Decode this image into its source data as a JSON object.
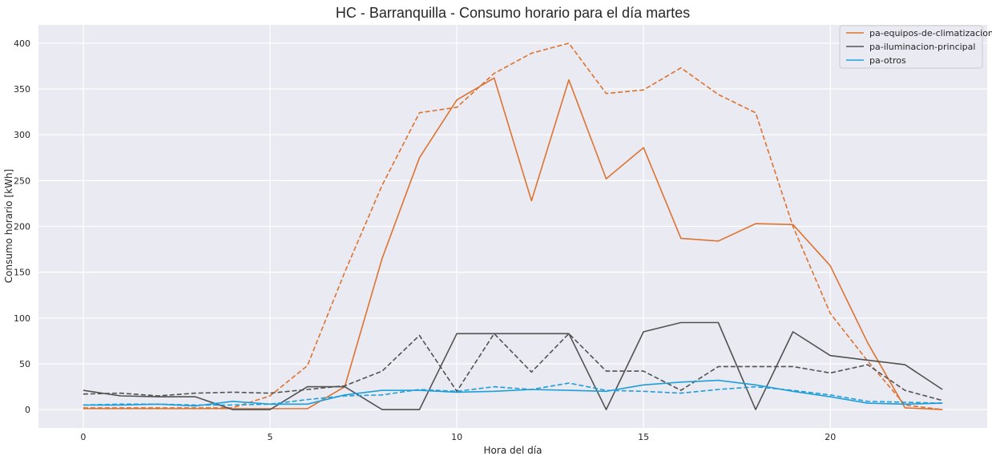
{
  "chart_data": {
    "type": "line",
    "title": "HC - Barranquilla - Consumo horario para el día martes",
    "xlabel": "Hora del día",
    "ylabel": "Consumo horario [kWh]",
    "xlim": [
      -1.2,
      24.2
    ],
    "ylim": [
      -20,
      420
    ],
    "xticks": [
      0,
      5,
      10,
      15,
      20
    ],
    "yticks": [
      0,
      50,
      100,
      150,
      200,
      250,
      300,
      350,
      400
    ],
    "grid": true,
    "legend_position": "top-right",
    "background": "#eaeaf2",
    "x": [
      0,
      1,
      2,
      3,
      4,
      5,
      6,
      7,
      8,
      9,
      10,
      11,
      12,
      13,
      14,
      15,
      16,
      17,
      18,
      19,
      20,
      21,
      22,
      23
    ],
    "series": [
      {
        "name": "pa-equipos-de-climatizacion",
        "style": "solid",
        "color": "#dd7330",
        "legend": true,
        "values": [
          1,
          1,
          1,
          1,
          1,
          1,
          1,
          25,
          165,
          275,
          338,
          362,
          228,
          360,
          252,
          286,
          187,
          184,
          203,
          202,
          157,
          73,
          2,
          0
        ]
      },
      {
        "name": "pa-equipos-de-climatizacion",
        "style": "dashed",
        "color": "#dd7330",
        "legend": false,
        "values": [
          2,
          2,
          2,
          2,
          2,
          15,
          48,
          150,
          245,
          324,
          330,
          367,
          389,
          400,
          345,
          349,
          373,
          344,
          324,
          200,
          105,
          53,
          5,
          0
        ]
      },
      {
        "name": "pa-iluminacion-principal",
        "style": "solid",
        "color": "#525252",
        "legend": true,
        "values": [
          21,
          15,
          14,
          14,
          0,
          0,
          25,
          25,
          0,
          0,
          83,
          83,
          83,
          83,
          0,
          85,
          95,
          95,
          0,
          85,
          59,
          54,
          49,
          22
        ]
      },
      {
        "name": "pa-iluminacion-principal",
        "style": "dashed",
        "color": "#525252",
        "legend": false,
        "values": [
          17,
          18,
          15,
          18,
          19,
          18,
          22,
          26,
          42,
          81,
          20,
          83,
          41,
          83,
          42,
          42,
          21,
          47,
          47,
          47,
          40,
          49,
          21,
          10
        ]
      },
      {
        "name": "pa-otros",
        "style": "solid",
        "color": "#1f9fd9",
        "legend": true,
        "values": [
          5,
          5,
          6,
          4,
          9,
          6,
          6,
          16,
          21,
          21,
          19,
          20,
          22,
          21,
          20,
          27,
          30,
          32,
          27,
          20,
          14,
          7,
          6,
          7
        ]
      },
      {
        "name": "pa-otros",
        "style": "dashed",
        "color": "#1f9fd9",
        "legend": false,
        "values": [
          5,
          6,
          6,
          5,
          5,
          6,
          11,
          15,
          16,
          22,
          20,
          25,
          22,
          29,
          21,
          20,
          18,
          22,
          25,
          21,
          16,
          9,
          8,
          7
        ]
      }
    ]
  }
}
